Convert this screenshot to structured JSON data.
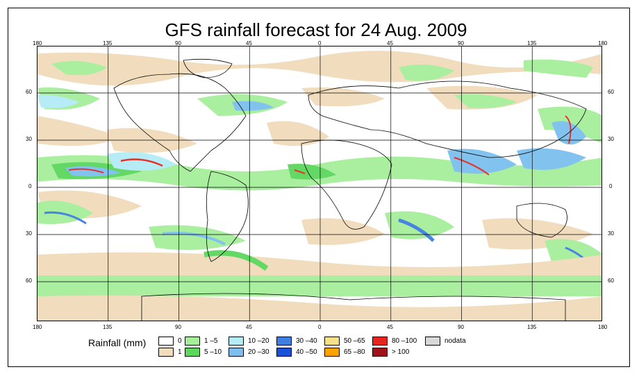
{
  "title": "GFS rainfall forecast for 24 Aug. 2009",
  "lon_ticks": [
    "180",
    "135",
    "90",
    "45",
    "0",
    "45",
    "90",
    "135",
    "180"
  ],
  "lat_ticks": [
    "60",
    "30",
    "0",
    "30",
    "60"
  ],
  "legend": {
    "title": "Rainfall (mm)",
    "items": [
      {
        "label": "0",
        "color": "#ffffff"
      },
      {
        "label": "1",
        "color": "#f1dcbb"
      },
      {
        "label": "1 –5",
        "color": "#a6ee9a"
      },
      {
        "label": "5 –10",
        "color": "#5cd65c"
      },
      {
        "label": "10 –20",
        "color": "#b3ecf5"
      },
      {
        "label": "20 –30",
        "color": "#7cbfee"
      },
      {
        "label": "30 –40",
        "color": "#3e7ee0"
      },
      {
        "label": "40 –50",
        "color": "#1a4fd8"
      },
      {
        "label": "50 –65",
        "color": "#f6e08a"
      },
      {
        "label": "65 –80",
        "color": "#ffa200"
      },
      {
        "label": "80 –100",
        "color": "#e8251b"
      },
      {
        "label": "> 100",
        "color": "#a0131b"
      },
      {
        "label": "nodata",
        "color": "#d8d8d8"
      }
    ]
  }
}
